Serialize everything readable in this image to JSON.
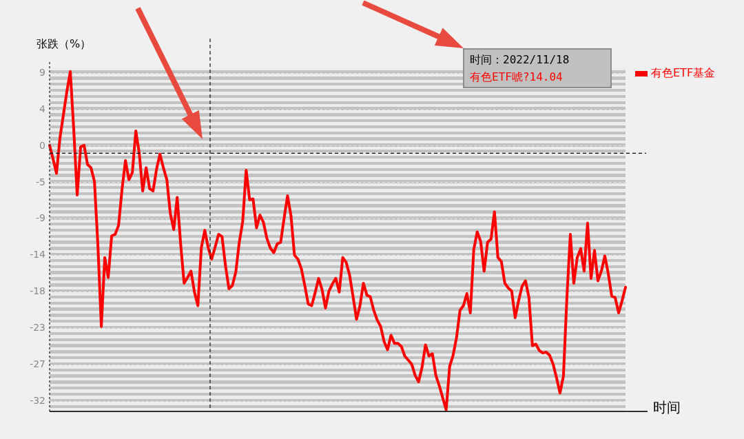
{
  "chart_data": {
    "type": "line",
    "ylabel": "张跌（%）",
    "xlabel": "时间",
    "categories": [
      null,
      null,
      null,
      null,
      null,
      null,
      null,
      null,
      null,
      null,
      null,
      null,
      null,
      null,
      null,
      null,
      null,
      null,
      null,
      null,
      null,
      null,
      null,
      null,
      null,
      null,
      null,
      null,
      null,
      null,
      null,
      null,
      null,
      null,
      null,
      null,
      null,
      null,
      null,
      null,
      null,
      null,
      null,
      null,
      null,
      null,
      null,
      null,
      null,
      null,
      null,
      null,
      null,
      null,
      null,
      null,
      null,
      null,
      null,
      null,
      null,
      null,
      null,
      null,
      null,
      null,
      null,
      null,
      null,
      null,
      null,
      null,
      null,
      null,
      null,
      null,
      null,
      null,
      null,
      null,
      null,
      null,
      null,
      null,
      null,
      null,
      null,
      null,
      null,
      null,
      null,
      null,
      null,
      null,
      null,
      null,
      null,
      null,
      null,
      null,
      null,
      null,
      null,
      null,
      null,
      null,
      null,
      null,
      null,
      null,
      null,
      null,
      null,
      null,
      null,
      null,
      null,
      null,
      null,
      null,
      null,
      null,
      null,
      null,
      null,
      null,
      null,
      null,
      null,
      null,
      null,
      null,
      null,
      null,
      null,
      null,
      null,
      null,
      null,
      null,
      null,
      null,
      null,
      null,
      null,
      null,
      null,
      null,
      null,
      null,
      null,
      null,
      null,
      null,
      null,
      null,
      null,
      null,
      null,
      null,
      null,
      null,
      null,
      null,
      null,
      null,
      null,
      null
    ],
    "series": [
      {
        "name": "有色ETF基金",
        "color": "#ff0000",
        "values": [
          0.0,
          -1.7,
          -3.5,
          0.9,
          3.8,
          6.7,
          9.2,
          2.0,
          -6.2,
          -0.2,
          0.0,
          -2.4,
          -2.8,
          -4.5,
          -12.4,
          -22.6,
          -14.0,
          -16.5,
          -11.3,
          -11.1,
          -10.0,
          -5.5,
          -1.9,
          -4.3,
          -3.4,
          1.8,
          -1.0,
          -5.7,
          -2.8,
          -5.4,
          -5.7,
          -3.0,
          -1.1,
          -2.8,
          -4.3,
          -8.5,
          -10.5,
          -6.5,
          -12.3,
          -17.2,
          -16.5,
          -15.7,
          -18.3,
          -20.0,
          -12.8,
          -10.6,
          -12.8,
          -14.2,
          -12.7,
          -11.1,
          -11.4,
          -15.0,
          -17.9,
          -17.5,
          -15.8,
          -12.1,
          -9.5,
          -3.1,
          -6.8,
          -6.7,
          -10.3,
          -8.7,
          -9.6,
          -11.6,
          -12.8,
          -13.4,
          -12.3,
          -12.1,
          -9.1,
          -6.3,
          -8.8,
          -13.7,
          -14.2,
          -15.4,
          -17.5,
          -19.8,
          -20.0,
          -18.4,
          -16.6,
          -18.0,
          -20.3,
          -18.2,
          -17.3,
          -16.6,
          -18.3,
          -14.0,
          -14.6,
          -16.2,
          -18.9,
          -21.7,
          -20.0,
          -17.2,
          -18.7,
          -18.9,
          -20.6,
          -21.8,
          -22.6,
          -24.5,
          -25.5,
          -23.7,
          -24.7,
          -24.7,
          -25.1,
          -26.3,
          -26.8,
          -27.3,
          -28.7,
          -29.5,
          -27.7,
          -24.9,
          -26.3,
          -26.0,
          -28.7,
          -30.0,
          -31.5,
          -33.0,
          -27.6,
          -26.2,
          -24.0,
          -20.6,
          -20.0,
          -18.5,
          -20.9,
          -13.0,
          -10.8,
          -12.0,
          -15.7,
          -12.1,
          -11.7,
          -8.3,
          -14.0,
          -14.5,
          -17.2,
          -17.8,
          -18.2,
          -21.5,
          -19.4,
          -17.6,
          -16.9,
          -19.0,
          -25.0,
          -24.8,
          -25.6,
          -25.9,
          -25.8,
          -26.2,
          -27.3,
          -29.0,
          -30.9,
          -28.8,
          -19.0,
          -11.1,
          -17.2,
          -14.0,
          -12.9,
          -15.7,
          -9.7,
          -16.6,
          -13.1,
          -16.9,
          -15.7,
          -13.8,
          -16.0,
          -18.8,
          -19.0,
          -20.9,
          -19.4,
          -17.7
        ]
      }
    ],
    "ylim": [
      -33.2,
      9.7
    ],
    "yticks": [
      {
        "value": 9.0,
        "label": "9"
      },
      {
        "value": 4.45,
        "label": "4"
      },
      {
        "value": -0.1,
        "label": "0"
      },
      {
        "value": -4.65,
        "label": "-5"
      },
      {
        "value": -9.2,
        "label": "-9"
      },
      {
        "value": -13.75,
        "label": "-14"
      },
      {
        "value": -18.3,
        "label": "-18"
      },
      {
        "value": -22.85,
        "label": "-23"
      },
      {
        "value": -27.4,
        "label": "-27"
      },
      {
        "value": -31.95,
        "label": "-32"
      }
    ],
    "grid": "y",
    "legend": "top right",
    "ref_lines": [
      {
        "axis": "y",
        "value": -1.0,
        "color": "#000000",
        "line_style": "dashed"
      }
    ],
    "annotations": [
      "时间：2022/11/18",
      "有色ETF唬?14.04"
    ]
  }
}
